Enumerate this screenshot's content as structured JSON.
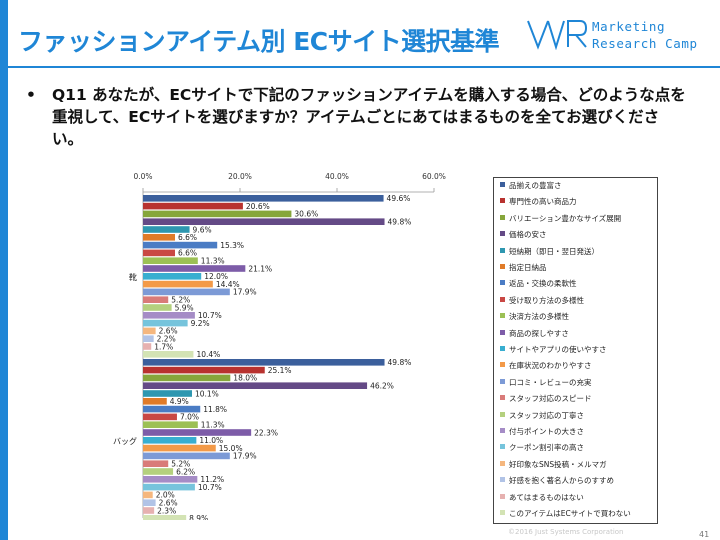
{
  "header": {
    "title": "ファッションアイテム別 ECサイト選択基準",
    "logo_line1": "Marketing",
    "logo_line2": "Research Camp"
  },
  "question": {
    "bullet": "•",
    "text": "Q11 あなたが、ECサイトで下記のファッションアイテムを購入する場合、どのような点を重視して、ECサイトを選びますか？アイテムごとにあてはまるものを全てお選びください。"
  },
  "footer": {
    "copyright": "©2016 Just Systems Corporation",
    "page": "41"
  },
  "chart_data": {
    "type": "bar",
    "orientation": "horizontal",
    "xlim": [
      0,
      60
    ],
    "xticks": [
      "0.0%",
      "20.0%",
      "40.0%",
      "60.0%"
    ],
    "grid": false,
    "legend_position": "right",
    "categories": [
      "靴",
      "バッグ"
    ],
    "series": [
      {
        "name": "品揃えの豊富さ",
        "color": "#3b5f9c",
        "values": [
          49.6,
          49.8
        ]
      },
      {
        "name": "専門性の高い商品力",
        "color": "#b8322f",
        "values": [
          20.6,
          25.1
        ]
      },
      {
        "name": "バリエーション豊かなサイズ展開",
        "color": "#86a63b",
        "values": [
          30.6,
          18.0
        ]
      },
      {
        "name": "価格の安さ",
        "color": "#644a86",
        "values": [
          49.8,
          46.2
        ]
      },
      {
        "name": "短納期（即日・翌日発送）",
        "color": "#2e97b0",
        "values": [
          9.6,
          10.1
        ]
      },
      {
        "name": "指定日納品",
        "color": "#e07b28",
        "values": [
          6.6,
          4.9
        ]
      },
      {
        "name": "返品・交換の柔軟性",
        "color": "#4a7cc4",
        "values": [
          15.3,
          11.8
        ]
      },
      {
        "name": "受け取り方法の多様性",
        "color": "#c94844",
        "values": [
          6.6,
          7.0
        ]
      },
      {
        "name": "決済方法の多様性",
        "color": "#9cc055",
        "values": [
          11.3,
          11.3
        ]
      },
      {
        "name": "商品の探しやすさ",
        "color": "#7d5ca8",
        "values": [
          21.1,
          22.3
        ]
      },
      {
        "name": "サイトやアプリの使いやすさ",
        "color": "#38aed0",
        "values": [
          12.0,
          11.0
        ]
      },
      {
        "name": "在庫状況のわかりやすさ",
        "color": "#f39a48",
        "values": [
          14.4,
          15.0
        ]
      },
      {
        "name": "口コミ・レビューの充実",
        "color": "#7c9ad6",
        "values": [
          17.9,
          17.9
        ]
      },
      {
        "name": "スタッフ対応のスピード",
        "color": "#d97b79",
        "values": [
          5.2,
          5.2
        ]
      },
      {
        "name": "スタッフ対応の丁寧さ",
        "color": "#b4d07e",
        "values": [
          5.9,
          6.2
        ]
      },
      {
        "name": "付与ポイントの大きさ",
        "color": "#a58cc6",
        "values": [
          10.7,
          11.2
        ]
      },
      {
        "name": "クーポン割引率の高さ",
        "color": "#76c4dc",
        "values": [
          9.2,
          10.7
        ]
      },
      {
        "name": "好印象なSNS投稿・メルマガ",
        "color": "#f5b77e",
        "values": [
          2.6,
          2.0
        ]
      },
      {
        "name": "好感を抱く著名人からのすすめ",
        "color": "#b1c3e6",
        "values": [
          2.2,
          2.6
        ]
      },
      {
        "name": "あてはまるものはない",
        "color": "#e6b1b0",
        "values": [
          1.7,
          2.3
        ]
      },
      {
        "name": "このアイテムはECサイトで買わない",
        "color": "#d3e3b4",
        "values": [
          10.4,
          8.9
        ]
      }
    ]
  }
}
